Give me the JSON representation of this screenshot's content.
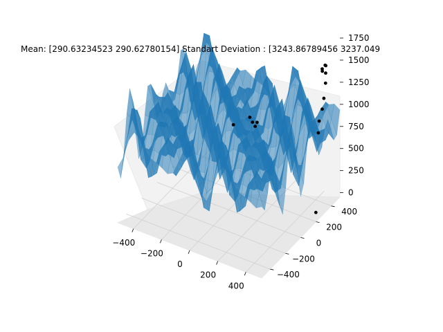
{
  "chart_data": {
    "type": "surface3d",
    "title": "Mean: [290.63234523 290.62780154]   Standart Deviation : [3243.86789456 3237.049",
    "xlabel": "",
    "ylabel": "",
    "zlabel": "",
    "xlim": [
      -512,
      512
    ],
    "ylim": [
      -512,
      512
    ],
    "zlim": [
      -50,
      1750
    ],
    "x_ticks": [
      "−400",
      "−200",
      "0",
      "200",
      "400"
    ],
    "y_ticks": [
      "−400",
      "−200",
      "0",
      "200",
      "400"
    ],
    "z_ticks": [
      "0",
      "250",
      "500",
      "750",
      "1000",
      "1250",
      "1500",
      "1750"
    ],
    "surface_color": "#1f77b4",
    "point_color": "#000000",
    "grid": true,
    "scatter_points": [
      {
        "x": 430,
        "y": 470,
        "z": 1430
      },
      {
        "x": 440,
        "y": 460,
        "z": 1440
      },
      {
        "x": 420,
        "y": 450,
        "z": 1400
      },
      {
        "x": 450,
        "y": 440,
        "z": 1380
      },
      {
        "x": 410,
        "y": 470,
        "z": 1350
      },
      {
        "x": 460,
        "y": 420,
        "z": 1290
      },
      {
        "x": 470,
        "y": 380,
        "z": 1160
      },
      {
        "x": 480,
        "y": 340,
        "z": 1080
      },
      {
        "x": 480,
        "y": 300,
        "z": 980
      },
      {
        "x": 490,
        "y": 270,
        "z": 880
      },
      {
        "x": 500,
        "y": 220,
        "z": 30
      },
      {
        "x": 30,
        "y": 220,
        "z": 820
      },
      {
        "x": 60,
        "y": 200,
        "z": 800
      },
      {
        "x": 90,
        "y": 180,
        "z": 790
      },
      {
        "x": 0,
        "y": 60,
        "z": 860
      },
      {
        "x": 120,
        "y": 150,
        "z": 880
      }
    ]
  }
}
